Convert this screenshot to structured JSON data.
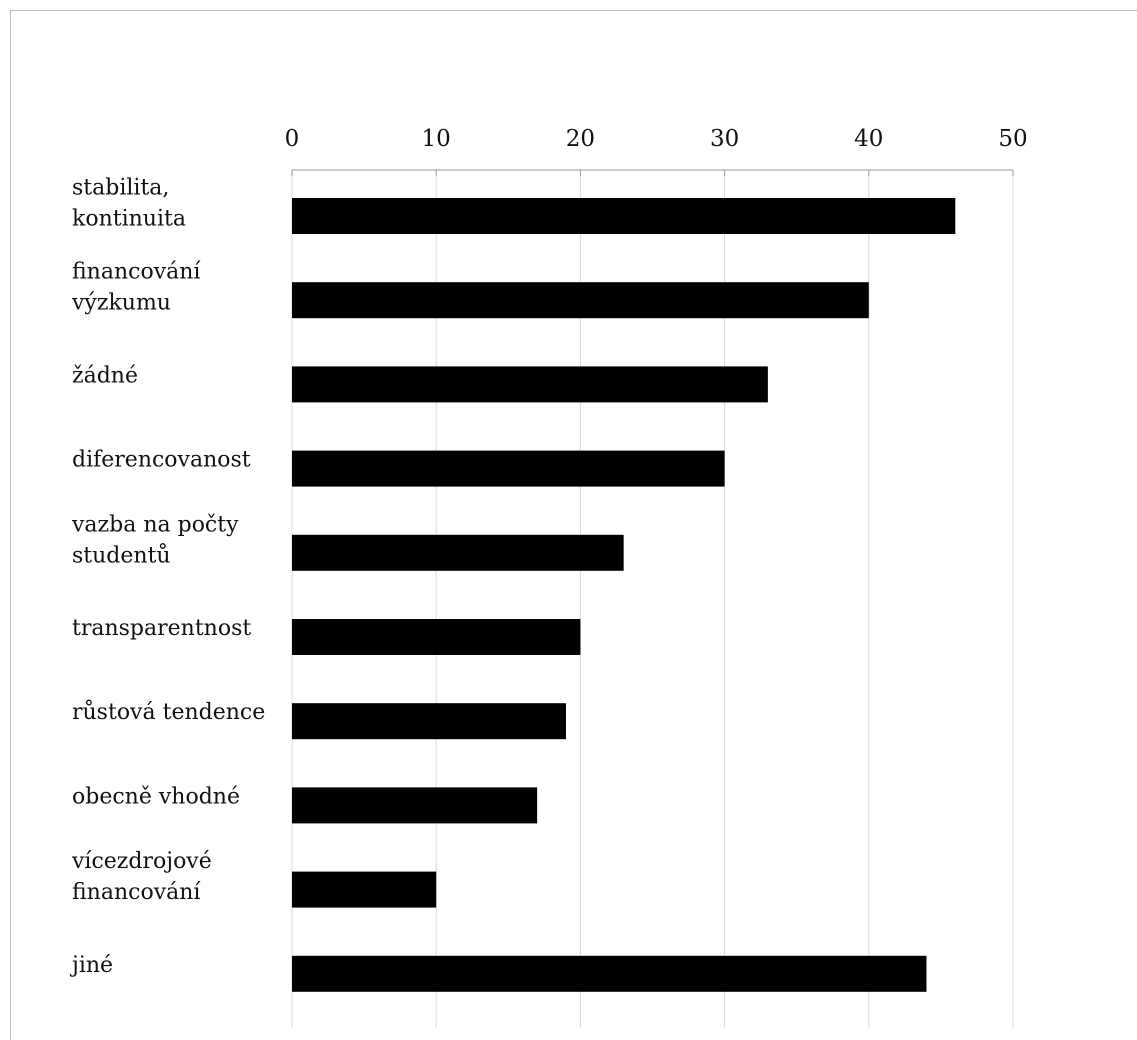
{
  "chart_data": {
    "type": "bar",
    "orientation": "horizontal",
    "title": "",
    "xlabel": "",
    "ylabel": "",
    "xlim": [
      0,
      50
    ],
    "x_ticks": [
      0,
      10,
      20,
      30,
      40,
      50
    ],
    "grid": true,
    "legend": "none",
    "bar_color": "#000000",
    "categories": [
      [
        "stabilita,",
        "kontinuita"
      ],
      [
        "financování",
        "výzkumu"
      ],
      [
        "žádné"
      ],
      [
        "diferencovanost"
      ],
      [
        "vazba na počty",
        "studentů"
      ],
      [
        "transparentnost"
      ],
      [
        "růstová tendence"
      ],
      [
        "obecně vhodné"
      ],
      [
        "vícezdrojové",
        "financování"
      ],
      [
        "jiné"
      ]
    ],
    "values": [
      46,
      40,
      33,
      30,
      23,
      20,
      19,
      17,
      10,
      44
    ]
  }
}
